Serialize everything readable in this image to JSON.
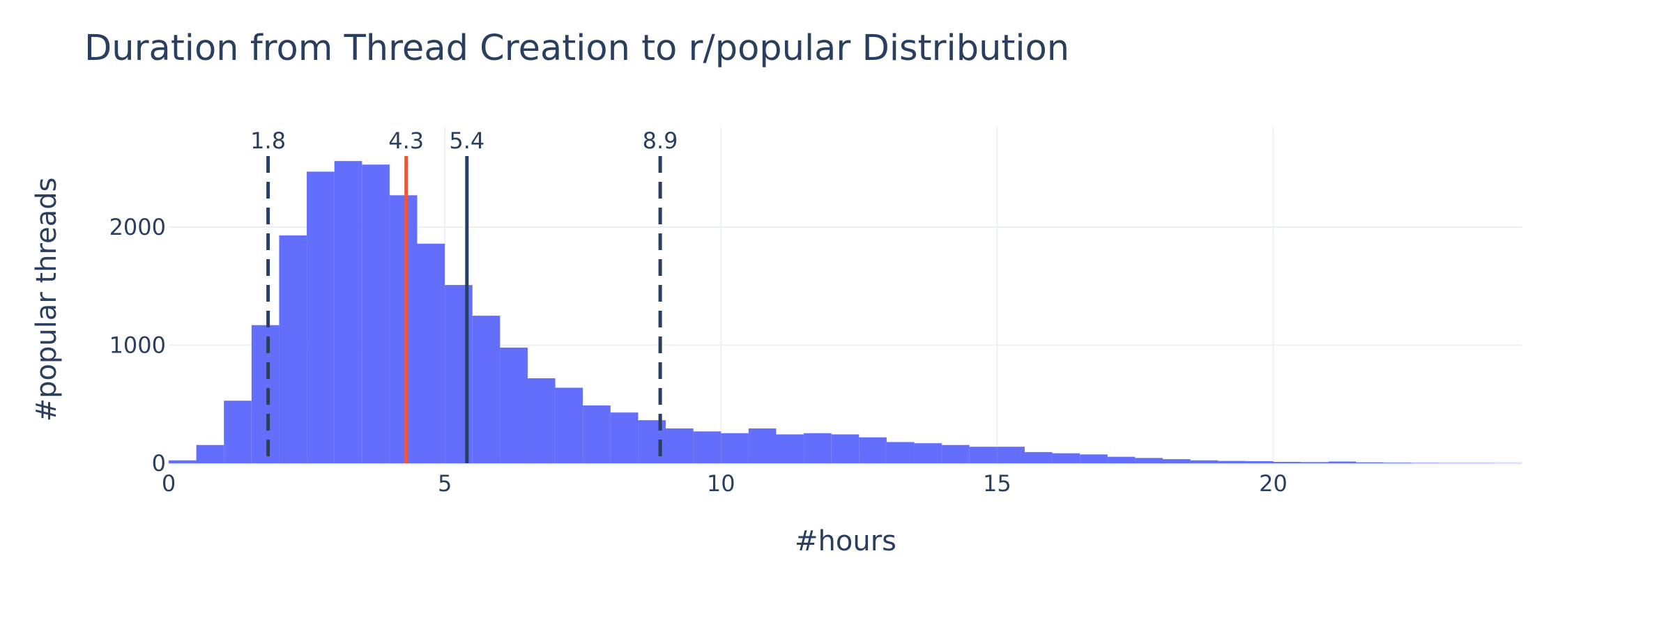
{
  "chart_data": {
    "type": "bar",
    "title": "Duration from Thread Creation to r/popular Distribution",
    "xlabel": "#hours",
    "ylabel": "#popular threads",
    "xlim": [
      0,
      24.5
    ],
    "ylim": [
      0,
      2850
    ],
    "x_ticks": [
      0,
      5,
      10,
      15,
      20
    ],
    "y_ticks": [
      0,
      1000,
      2000
    ],
    "grid": true,
    "bin_width": 0.5,
    "bar_color": "#636efa",
    "values": [
      25,
      155,
      530,
      1170,
      1930,
      2470,
      2560,
      2530,
      2270,
      1860,
      1510,
      1250,
      980,
      720,
      640,
      490,
      430,
      365,
      295,
      270,
      255,
      295,
      245,
      255,
      245,
      220,
      180,
      170,
      155,
      140,
      140,
      95,
      85,
      75,
      55,
      45,
      35,
      25,
      20,
      18,
      12,
      10,
      15,
      8,
      5,
      3,
      2,
      2,
      1
    ],
    "markers": [
      {
        "label": "1.8",
        "x": 1.8,
        "style": "dash",
        "color": "#2a3f5f"
      },
      {
        "label": "4.3",
        "x": 4.3,
        "style": "solid",
        "color": "#ef553b"
      },
      {
        "label": "5.4",
        "x": 5.4,
        "style": "solid",
        "color": "#2a3f5f"
      },
      {
        "label": "8.9",
        "x": 8.9,
        "style": "dash",
        "color": "#2a3f5f"
      }
    ]
  }
}
